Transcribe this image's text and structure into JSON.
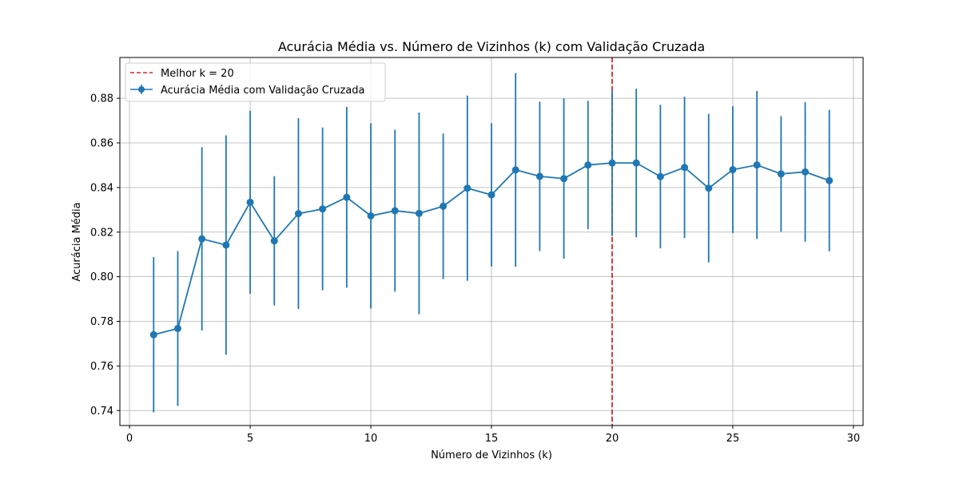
{
  "chart_data": {
    "type": "line",
    "title": "Acurácia Média vs. Número de Vizinhos (k) com Validação Cruzada",
    "xlabel": "Número de Vizinhos (k)",
    "ylabel": "Acurácia Média",
    "xlim": [
      -0.4,
      30.4
    ],
    "ylim": [
      0.7333,
      0.8983
    ],
    "xticks": [
      0,
      5,
      10,
      15,
      20,
      25,
      30
    ],
    "yticks": [
      0.74,
      0.76,
      0.78,
      0.8,
      0.82,
      0.84,
      0.86,
      0.88
    ],
    "xtick_labels": [
      "0",
      "5",
      "10",
      "15",
      "20",
      "25",
      "30"
    ],
    "ytick_labels": [
      "0.74",
      "0.76",
      "0.78",
      "0.80",
      "0.82",
      "0.84",
      "0.86",
      "0.88"
    ],
    "grid": true,
    "legend_position": "top-left",
    "series": [
      {
        "name": "Acurácia Média com Validação Cruzada",
        "color": "#1f77b4",
        "marker": "circle",
        "x": [
          1,
          2,
          3,
          4,
          5,
          6,
          7,
          8,
          9,
          10,
          11,
          12,
          13,
          14,
          15,
          16,
          17,
          18,
          19,
          20,
          21,
          22,
          23,
          24,
          25,
          26,
          27,
          28,
          29
        ],
        "y": [
          0.774,
          0.7768,
          0.817,
          0.8142,
          0.8334,
          0.8161,
          0.8283,
          0.8304,
          0.8356,
          0.8273,
          0.8296,
          0.8284,
          0.8316,
          0.8397,
          0.8367,
          0.8479,
          0.845,
          0.844,
          0.8501,
          0.851,
          0.851,
          0.8449,
          0.849,
          0.8397,
          0.848,
          0.8501,
          0.8461,
          0.847,
          0.8431
        ],
        "err": [
          0.0348,
          0.0347,
          0.0411,
          0.0492,
          0.041,
          0.029,
          0.0428,
          0.0365,
          0.0405,
          0.0415,
          0.0363,
          0.0452,
          0.0326,
          0.0415,
          0.0321,
          0.0434,
          0.0335,
          0.036,
          0.0288,
          0.0327,
          0.0333,
          0.0322,
          0.0317,
          0.0333,
          0.0284,
          0.0332,
          0.0259,
          0.0313,
          0.0317
        ]
      }
    ],
    "vline": {
      "name": "Melhor k = 20",
      "x": 20,
      "color": "#d62728",
      "style": "dashed"
    }
  }
}
